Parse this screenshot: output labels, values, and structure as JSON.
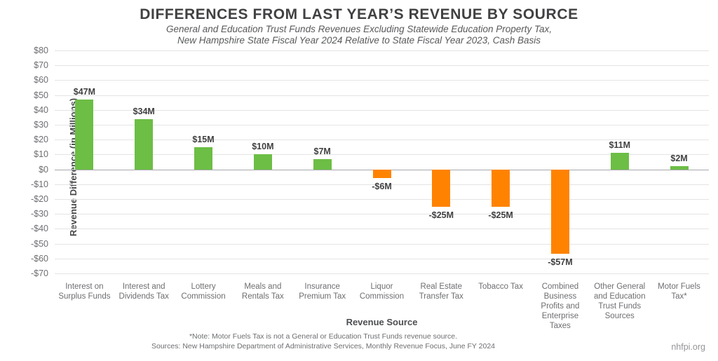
{
  "header": {
    "title": "DIFFERENCES FROM LAST YEAR’S REVENUE BY SOURCE",
    "subtitle_line1": "General and Education Trust Funds Revenues Excluding Statewide Education Property Tax,",
    "subtitle_line2": "New Hampshire State Fiscal Year 2024 Relative to State Fiscal Year 2023, Cash Basis"
  },
  "chart_data": {
    "type": "bar",
    "title": "DIFFERENCES FROM LAST YEAR’S REVENUE BY SOURCE",
    "categories": [
      "Interest on Surplus Funds",
      "Interest and Dividends Tax",
      "Lottery Commission",
      "Meals and Rentals Tax",
      "Insurance Premium Tax",
      "Liquor Commission",
      "Real Estate Transfer Tax",
      "Tobacco Tax",
      "Combined Business Profits and Enterprise Taxes",
      "Other General and Education Trust Funds Sources",
      "Motor Fuels Tax*"
    ],
    "values": [
      47,
      34,
      15,
      10,
      7,
      -6,
      -25,
      -25,
      -57,
      11,
      2
    ],
    "value_labels": [
      "$47M",
      "$34M",
      "$15M",
      "$10M",
      "$7M",
      "-$6M",
      "-$25M",
      "-$25M",
      "-$57M",
      "$11M",
      "$2M"
    ],
    "xlabel": "Revenue Source",
    "ylabel": "Revenue Difference (in Millions)",
    "ylim": [
      -70,
      80
    ],
    "ytick_step": 10,
    "ytick_labels": [
      "$80",
      "$70",
      "$60",
      "$50",
      "$40",
      "$30",
      "$20",
      "$10",
      "$0",
      "-$10",
      "-$20",
      "-$30",
      "-$40",
      "-$50",
      "-$60",
      "-$70"
    ],
    "grid": true,
    "legend": "none",
    "positive_color": "#6CBE45",
    "negative_color": "#FF8300"
  },
  "footer": {
    "note": "*Note: Motor Fuels Tax is not a General or Education Trust Funds revenue source.",
    "sources": "Sources: New Hampshire Department of Administrative Services, Monthly Revenue Focus, June FY 2024",
    "site": "nhfpi.org"
  }
}
